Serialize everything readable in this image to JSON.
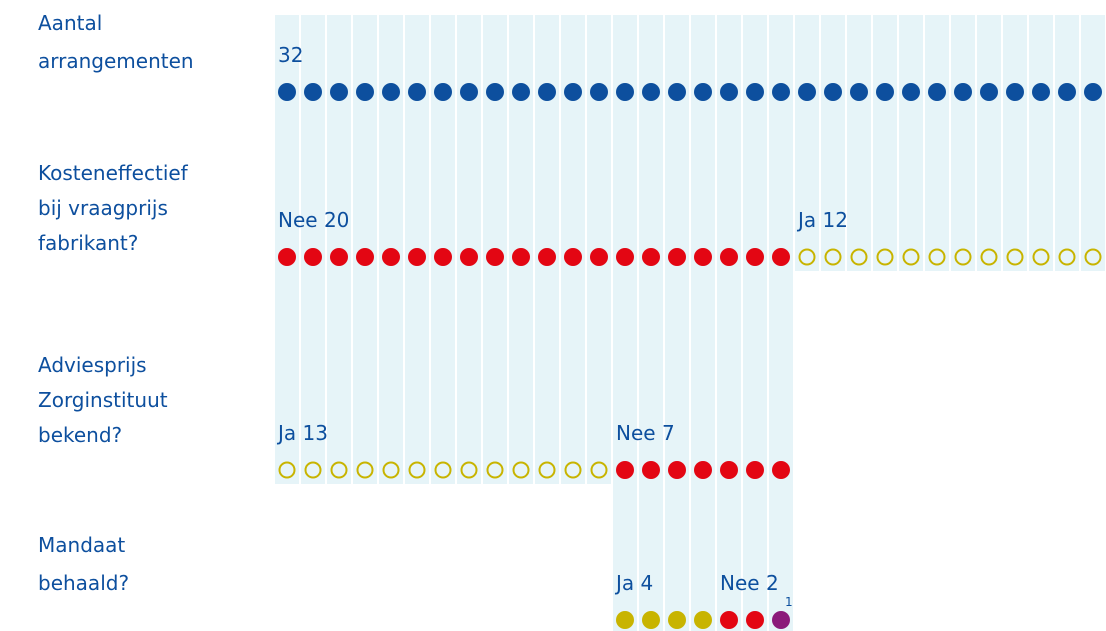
{
  "chart_data": {
    "type": "unit",
    "rows": [
      {
        "label": [
          "Aantal",
          "arrangementen"
        ],
        "groups": [
          {
            "count": 32,
            "color": "#0d4f9e",
            "hollow": false
          }
        ]
      },
      {
        "label": [
          "Kosteneffectief",
          "bij vraagprijs",
          "fabrikant?"
        ],
        "groups": [
          {
            "name": "Nee",
            "count": 20,
            "color": "#e30613",
            "hollow": false
          },
          {
            "name": "Ja",
            "count": 12,
            "color": "#c8b400",
            "hollow": true
          }
        ]
      },
      {
        "label": [
          "Adviesprijs",
          "Zorginstituut",
          "bekend?"
        ],
        "groups": [
          {
            "name": "Ja",
            "count": 13,
            "color": "#c8b400",
            "hollow": true
          },
          {
            "name": "Nee",
            "count": 7,
            "color": "#e30613",
            "hollow": false
          }
        ]
      },
      {
        "label": [
          "Mandaat",
          "behaald?"
        ],
        "groups": [
          {
            "name": "Ja",
            "count": 4,
            "color": "#c8b400",
            "hollow": false
          },
          {
            "name": "Nee",
            "count": 2,
            "color": "#e30613",
            "hollow": false
          },
          {
            "count": 1,
            "color": "#8b1a7a",
            "hollow": false
          }
        ]
      }
    ]
  }
}
